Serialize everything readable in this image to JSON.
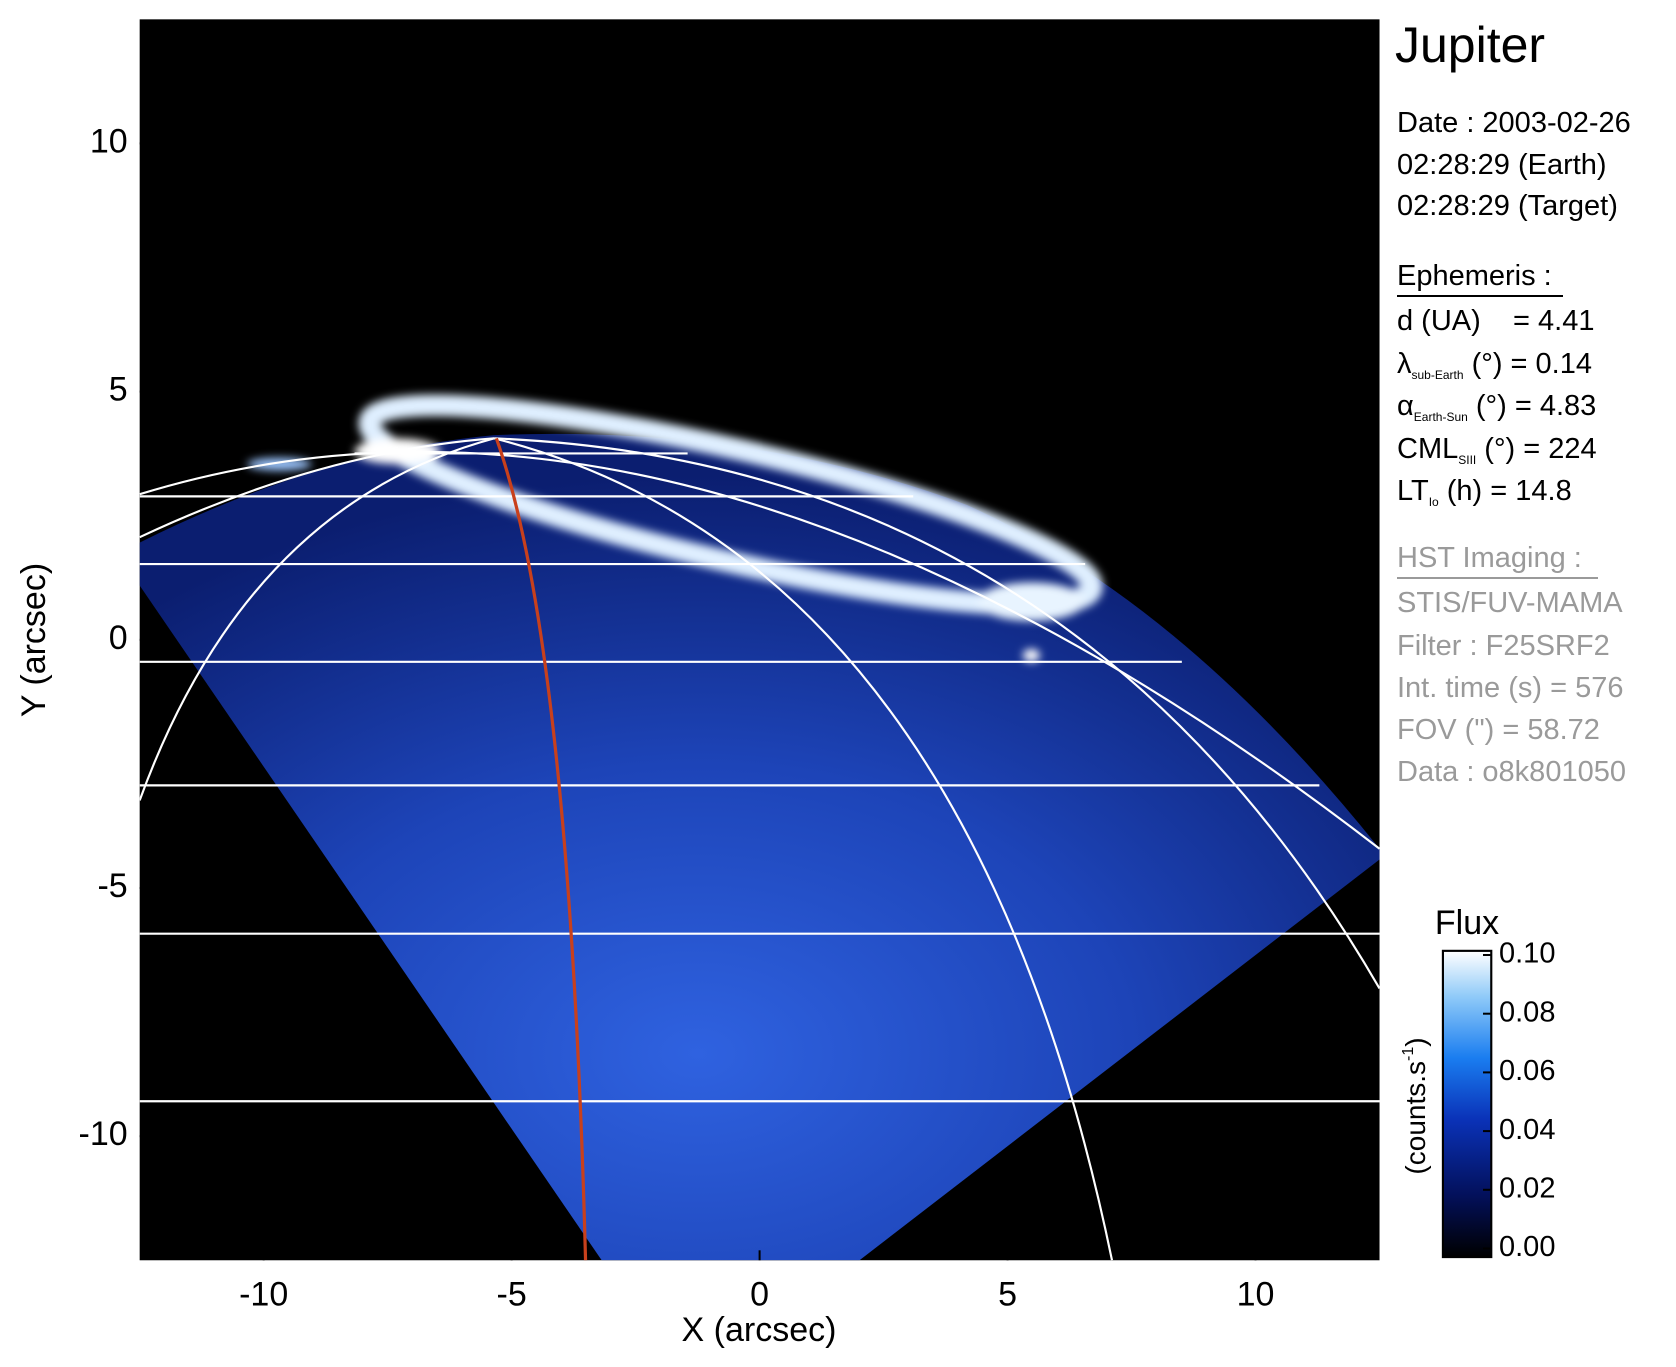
{
  "chart_data": {
    "type": "image",
    "xlabel": "X (arcsec)",
    "ylabel": "Y (arcsec)",
    "xlim": [
      -12.5,
      12.5
    ],
    "ylim": [
      -12.5,
      12.5
    ],
    "xticks": [
      -10,
      -5,
      0,
      5,
      10
    ],
    "yticks": [
      -10,
      -5,
      0,
      5,
      10
    ],
    "colorbar": {
      "label": "Flux",
      "unit": "(counts.s",
      "unit_sup": "-1",
      "unit_close": ")",
      "lim": [
        0,
        0.1
      ],
      "ticks": [
        {
          "value": 0,
          "label": "0.00"
        },
        {
          "value": 0.02,
          "label": "0.02"
        },
        {
          "value": 0.04,
          "label": "0.04"
        },
        {
          "value": 0.06,
          "label": "0.06"
        },
        {
          "value": 0.08,
          "label": "0.08"
        },
        {
          "value": 0.1,
          "label": "0.10"
        }
      ]
    }
  },
  "info": {
    "title": "Jupiter",
    "date": [
      "Date : 2003-02-26",
      "02:28:29 (Earth)",
      "02:28:29 (Target)"
    ],
    "ephemeris": {
      "heading": "Ephemeris :",
      "d": "d (UA)    = 4.41",
      "rows": [
        {
          "sym": "λ",
          "sub": "sub-Earth",
          "rest": " (°) = 0.14"
        },
        {
          "sym": "α",
          "sub": "Earth-Sun",
          "rest": " (°) = 4.83"
        },
        {
          "sym": "CML",
          "sub": "SIII",
          "rest": " (°) = 224"
        },
        {
          "sym": "LT",
          "sub": "Io",
          "rest": " (h) = 14.8"
        }
      ]
    },
    "hst": {
      "heading": "HST Imaging :",
      "lines": [
        "STIS/FUV-MAMA",
        "Filter : F25SRF2",
        "Int. time (s) = 576",
        "FOV (\") = 58.72",
        "Data : o8k801050"
      ]
    }
  }
}
